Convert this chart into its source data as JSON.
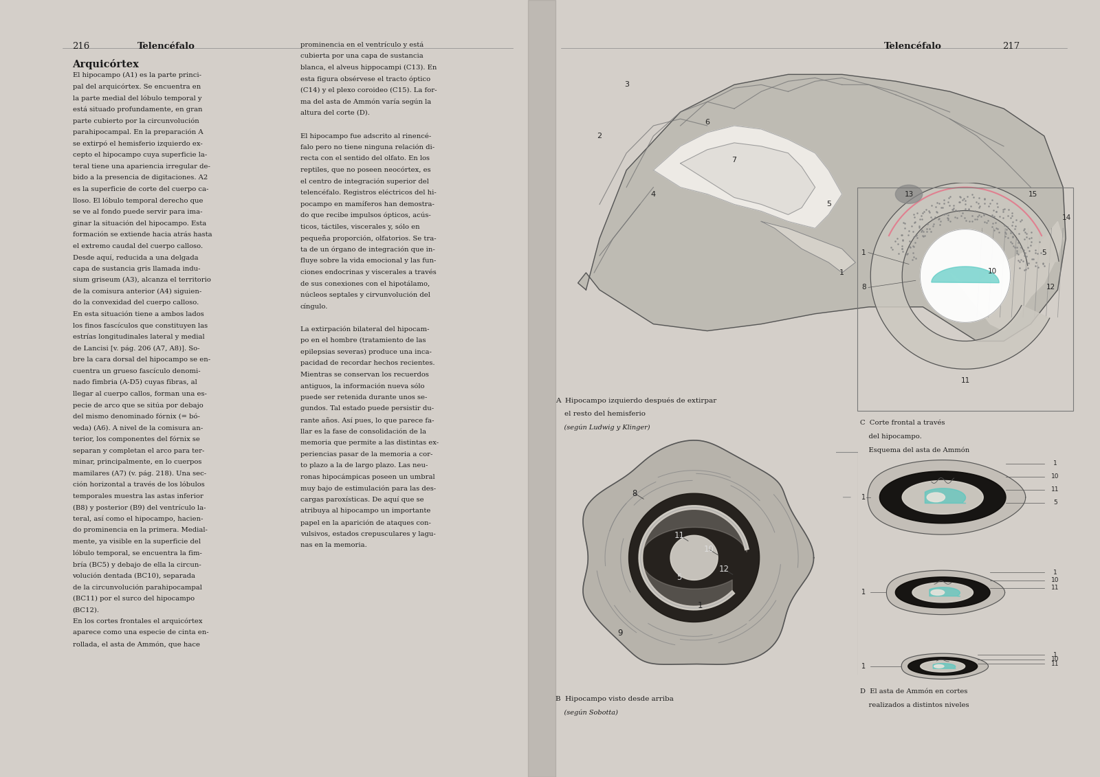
{
  "bg_outer": "#d4cfc9",
  "bg_left": "#f5f2ed",
  "bg_right": "#f5f2ed",
  "text_color": "#1a1a1a",
  "font_family": "DejaVu Serif",
  "left_header_num": "216",
  "left_header_title": "Telencéfalo",
  "right_header_title": "Telencéfalo",
  "right_header_num": "217",
  "section_title": "Arquicórtex",
  "left_col1": [
    "El hipocampo (A1) es la parte princi-",
    "pal del arquicórtex. Se encuentra en",
    "la parte medial del lóbulo temporal y",
    "está situado profundamente, en gran",
    "parte cubierto por la circunvolución",
    "parahipocampal. En la preparación A",
    "se extirpó el hemisferio izquierdo ex-",
    "cepto el hipocampo cuya superficie la-",
    "teral tiene una apariencia irregular de-",
    "bido a la presencia de digitaciones. A2",
    "es la superficie de corte del cuerpo ca-",
    "lloso. El lóbulo temporal derecho que",
    "se ve al fondo puede servir para ima-",
    "ginar la situación del hipocampo. Esta",
    "formación se extiende hacia atrás hasta",
    "el extremo caudal del cuerpo calloso.",
    "Desde aquí, reducida a una delgada",
    "capa de sustancia gris llamada indu-",
    "sium griseum (A3), alcanza el territorio",
    "de la comisura anterior (A4) siguien-",
    "do la convexidad del cuerpo calloso.",
    "En esta situación tiene a ambos lados",
    "los finos fascículos que constituyen las",
    "estrías longitudinales lateral y medial",
    "de Lancisi [v. pág. 206 (A7, A8)]. So-",
    "bre la cara dorsal del hipocampo se en-",
    "cuentra un grueso fascículo denomi-",
    "nado fimbria (A-D5) cuyas fibras, al",
    "llegar al cuerpo callos, forman una es-",
    "pecie de arco que se sitúa por debajo",
    "del mismo denominado fórnix (= bó-",
    "veda) (A6). A nivel de la comisura an-",
    "terior, los componentes del fórnix se",
    "separan y completan el arco para ter-",
    "minar, principalmente, en lo cuerpos",
    "mamilares (A7) (v. pág. 218). Una sec-",
    "ción horizontal a través de los lóbulos",
    "temporales muestra las astas inferior",
    "(B8) y posterior (B9) del ventrículo la-",
    "teral, así como el hipocampo, hacien-",
    "do prominencia en la primera. Medial-",
    "mente, ya visible en la superficie del",
    "lóbulo temporal, se encuentra la fim-",
    "bría (BC5) y debajo de ella la circun-",
    "volución dentada (BC10), separada",
    "de la circunvolución parahipocampal",
    "(BC11) por el surco del hipocampo",
    "(BC12).",
    "En los cortes frontales el arquicórtex",
    "aparece como una especie de cinta en-",
    "rollada, el asta de Ammón, que hace"
  ],
  "left_col2": [
    "prominencia en el ventrículo y está",
    "cubierta por una capa de sustancia",
    "blanca, el alveus hippocampi (C13). En",
    "esta figura obsérvese el tracto óptico",
    "(C14) y el plexo coroideo (C15). La for-",
    "ma del asta de Ammón varía según la",
    "altura del corte (D).",
    "",
    "El hipocampo fue adscrito al rinencé-",
    "falo pero no tiene ninguna relación di-",
    "recta con el sentido del olfato. En los",
    "reptiles, que no poseen neocórtex, es",
    "el centro de integración superior del",
    "telencéfalo. Registros eléctricos del hi-",
    "pocampo en mamíferos han demostra-",
    "do que recibe impulsos ópticos, acús-",
    "ticos, táctiles, viscerales y, sólo en",
    "pequeña proporción, olfatorios. Se tra-",
    "ta de un órgano de integración que in-",
    "fluye sobre la vida emocional y las fun-",
    "ciones endocrinas y viscerales a través",
    "de sus conexiones con el hipotálamo,",
    "núcleos septales y cirvunvolución del",
    "cíngulo.",
    "",
    "La extirpación bilateral del hipocam-",
    "po en el hombre (tratamiento de las",
    "epilepsias severas) produce una inca-",
    "pacidad de recordar hechos recientes.",
    "Mientras se conservan los recuerdos",
    "antiguos, la información nueva sólo",
    "puede ser retenida durante unos se-",
    "gundos. Tal estado puede persistir du-",
    "rante años. Así pues, lo que parece fa-",
    "llar es la fase de consolidación de la",
    "memoria que permite a las distintas ex-",
    "periencias pasar de la memoria a cor-",
    "to plazo a la de largo plazo. Las neu-",
    "ronas hipocámpicas poseen un umbral",
    "muy bajo de estimulación para las des-",
    "cargas paroxísticas. De aquí que se",
    "atribuya al hipocampo un importante",
    "papel en la aparición de ataques con-",
    "vulsivos, estados crepusculares y lagu-",
    "nas en la memoria."
  ],
  "fig_A_caption_line1": "A  Hipocampo izquierdo después de extirpar",
  "fig_A_caption_line2": "    el resto del hemisferio",
  "fig_A_caption_line3": "    (según Ludwig y Klinger)",
  "fig_B_caption_line1": "B  Hipocampo visto desde arriba",
  "fig_B_caption_line2": "    (según Sobotta)",
  "fig_C_caption_line1": "C  Corte frontal a través",
  "fig_C_caption_line2": "    del hipocampo.",
  "fig_C_caption_line3": "    Esquema del asta de Ammón",
  "fig_D_caption_line1": "D  El asta de Ammón en cortes",
  "fig_D_caption_line2": "    realizados a distintos niveles",
  "illus_gray_light": "#c8c4bc",
  "illus_gray_mid": "#a09890",
  "illus_gray_dark": "#686058",
  "illus_black": "#181410",
  "illus_white": "#f0ede8",
  "illus_cyan": "#50c8c0",
  "illus_pink": "#e08090"
}
